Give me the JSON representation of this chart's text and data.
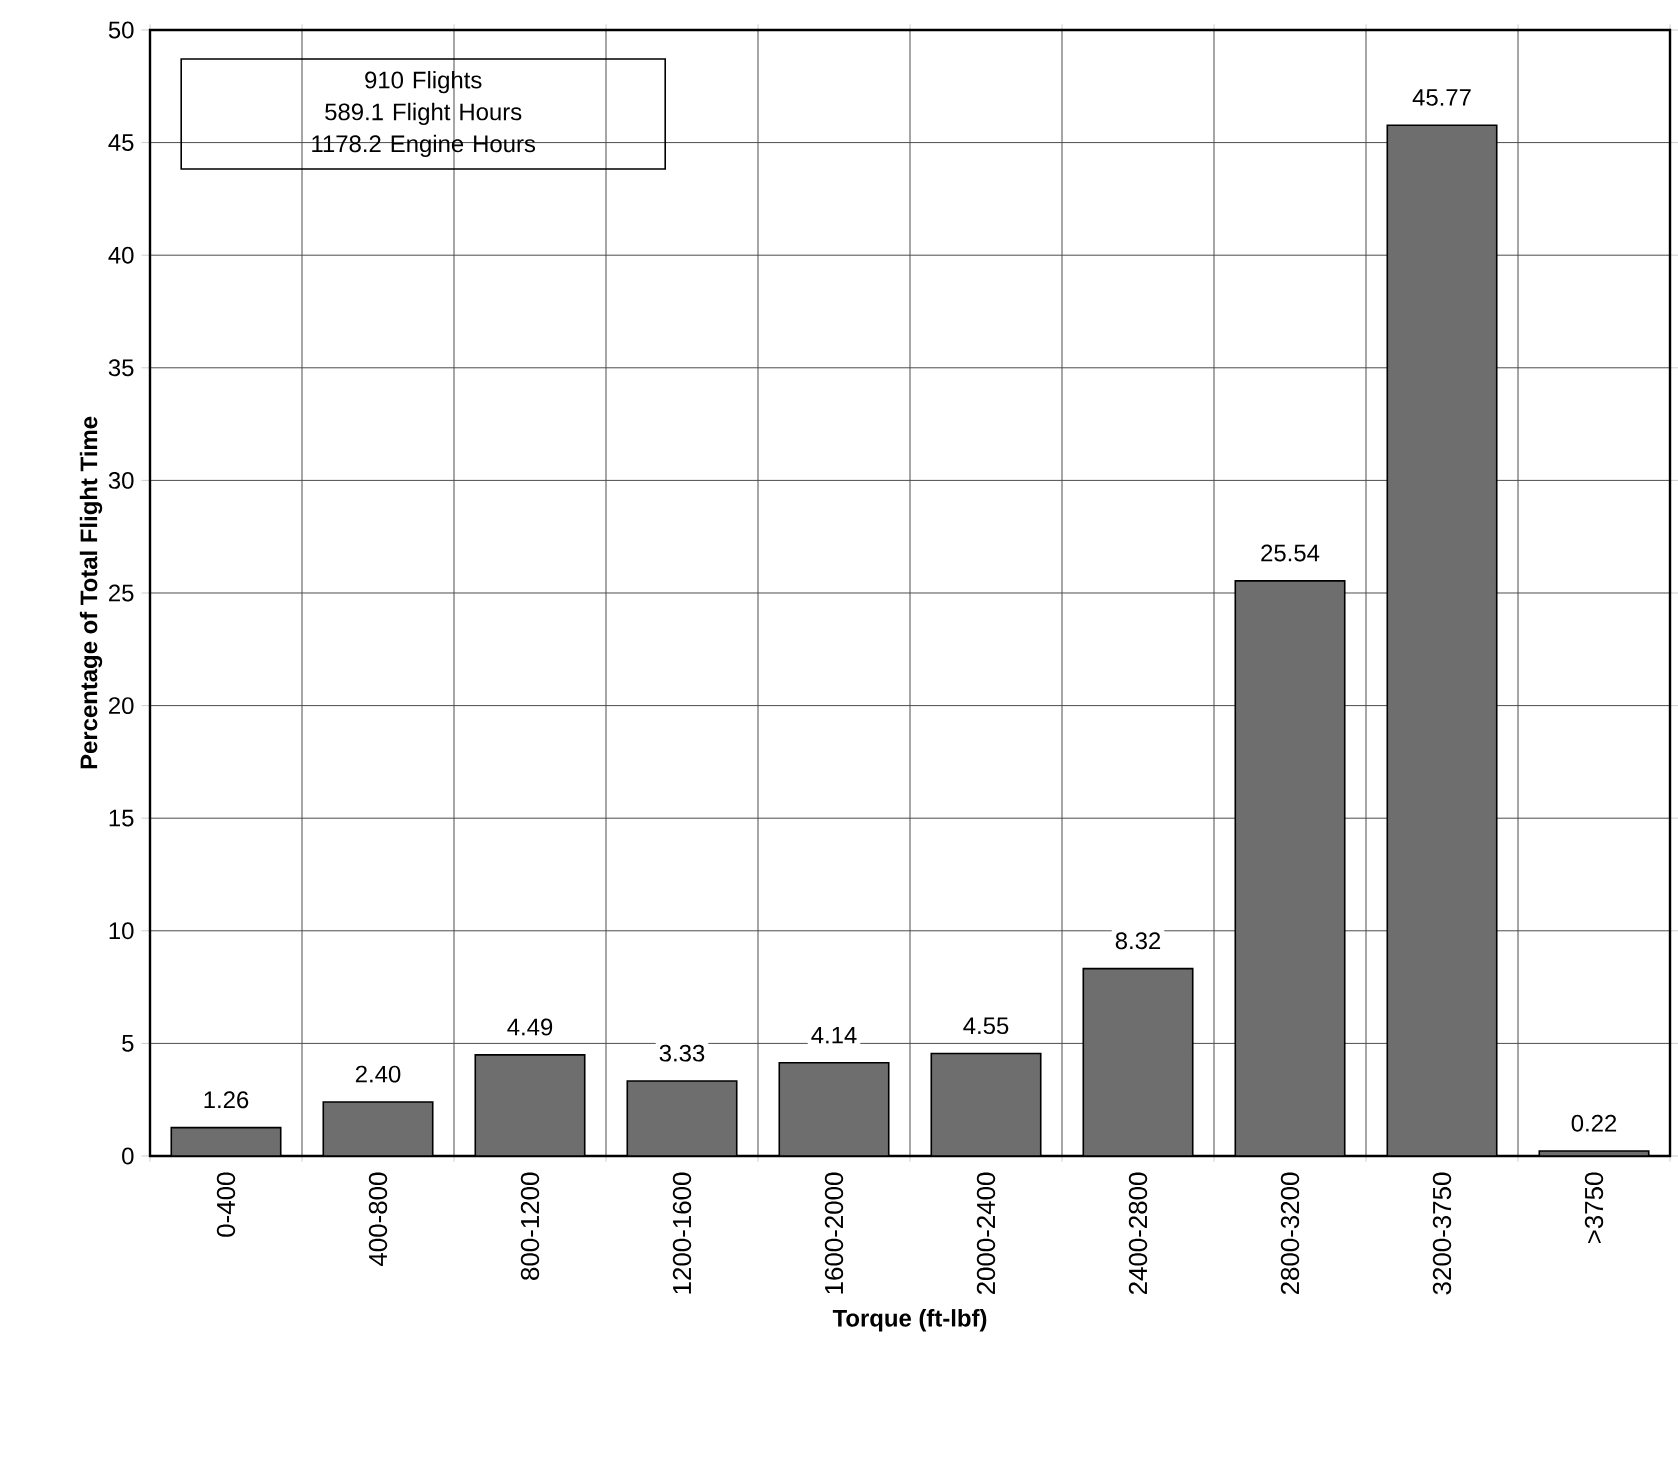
{
  "chart_data": {
    "type": "bar",
    "xlabel": "Torque (ft-lbf)",
    "ylabel": "Percentage of Total Flight Time",
    "categories": [
      "0-400",
      "400-800",
      "800-1200",
      "1200-1600",
      "1600-2000",
      "2000-2400",
      "2400-2800",
      "2800-3200",
      "3200-3750",
      ">3750"
    ],
    "values": [
      1.26,
      2.4,
      4.49,
      3.33,
      4.14,
      4.55,
      8.32,
      25.54,
      45.77,
      0.22
    ],
    "value_labels": [
      "1.26",
      "2.40",
      "4.49",
      "3.33",
      "4.14",
      "4.55",
      "8.32",
      "25.54",
      "45.77",
      "0.22"
    ],
    "color": "#6e6e6e",
    "ylim": [
      0,
      50
    ],
    "yticks": [
      0,
      5,
      10,
      15,
      20,
      25,
      30,
      35,
      40,
      45,
      50
    ],
    "grid": true,
    "annotations": [
      "910 Flights",
      "589.1 Flight Hours",
      "1178.2 Engine Hours"
    ]
  }
}
